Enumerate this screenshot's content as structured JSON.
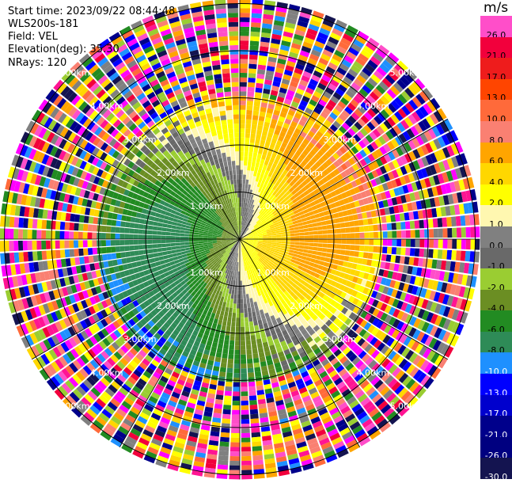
{
  "header": {
    "start_time": "Start time: 2023/09/22 08:44:48",
    "instrument": "WLS200s-181",
    "field": "Field: VEL",
    "elevation": "Elevation(deg): 35.30",
    "nrays": "NRays: 120"
  },
  "colorbar": {
    "title": "m/s",
    "levels": [
      {
        "label": "26.0",
        "color": "#ff4ec9",
        "text": "#000000"
      },
      {
        "label": "21.0",
        "color": "#f2003c",
        "text": "#000000"
      },
      {
        "label": "17.0",
        "color": "#ee1c1c",
        "text": "#000000"
      },
      {
        "label": "13.0",
        "color": "#ff4500",
        "text": "#000000"
      },
      {
        "label": "10.0",
        "color": "#ff6a3a",
        "text": "#000000"
      },
      {
        "label": "8.0",
        "color": "#fa8072",
        "text": "#000000"
      },
      {
        "label": "6.0",
        "color": "#ffa500",
        "text": "#000000"
      },
      {
        "label": "4.0",
        "color": "#ffd700",
        "text": "#000000"
      },
      {
        "label": "2.0",
        "color": "#ffff00",
        "text": "#000000"
      },
      {
        "label": "1.0",
        "color": "#fff7b0",
        "text": "#000000"
      },
      {
        "label": "0.0",
        "color": "#808080",
        "text": "#000000"
      },
      {
        "label": "-1.0",
        "color": "#696969",
        "text": "#000000"
      },
      {
        "label": "-2.0",
        "color": "#9acd32",
        "text": "#000000"
      },
      {
        "label": "-4.0",
        "color": "#6b8e23",
        "text": "#000000"
      },
      {
        "label": "-6.0",
        "color": "#228b22",
        "text": "#000000"
      },
      {
        "label": "-8.0",
        "color": "#2e8b57",
        "text": "#000000"
      },
      {
        "label": "-10.0",
        "color": "#1e90ff",
        "text": "#ffffff"
      },
      {
        "label": "-13.0",
        "color": "#0000ff",
        "text": "#ffffff"
      },
      {
        "label": "-17.0",
        "color": "#0000cd",
        "text": "#ffffff"
      },
      {
        "label": "-21.0",
        "color": "#00008b",
        "text": "#ffffff"
      },
      {
        "label": "-26.0",
        "color": "#000080",
        "text": "#ffffff"
      },
      {
        "label": "-30.0",
        "color": "#141450",
        "text": "#ffffff"
      }
    ]
  },
  "chart_data": {
    "type": "heatmap",
    "title": "",
    "field": "VEL",
    "units": "m/s",
    "elevation_deg": 35.3,
    "n_rays": 120,
    "range_ring_labels": [
      "1.00km",
      "2.00km",
      "3.00km",
      "4.00km",
      "5.00km"
    ],
    "range_rings_km": [
      1,
      2,
      3,
      4,
      5
    ],
    "max_range_km": 5.1,
    "clean_data_range_km": 3.0,
    "spoke_azimuths_deg": [
      0,
      30,
      60,
      90,
      120,
      150,
      180,
      210,
      240,
      270,
      300,
      330
    ],
    "ring_label_azimuths_deg": [
      135,
      45,
      315,
      225
    ],
    "velocity_pattern": {
      "inbound_sector_azimuths_deg": [
        180,
        360
      ],
      "outbound_sector_azimuths_deg": [
        0,
        180
      ],
      "peak_inbound_ms": -8.0,
      "peak_outbound_ms": 8.0
    },
    "grid": true
  }
}
